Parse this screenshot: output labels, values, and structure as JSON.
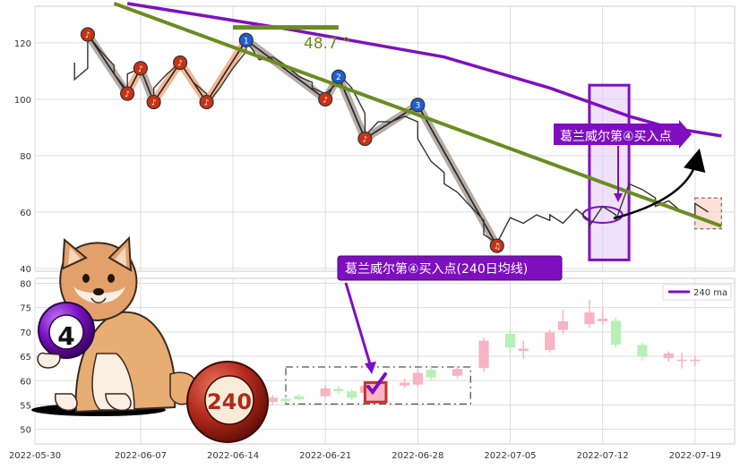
{
  "chart_data": [
    {
      "type": "line",
      "panel": "price",
      "ylim": [
        39,
        133
      ],
      "y_ticks": [
        "120",
        "100",
        "80",
        "60",
        "40"
      ],
      "grid": true,
      "price_series": [
        [
          "2022-06-02",
          113
        ],
        [
          "2022-06-02",
          107
        ],
        [
          "2022-06-03",
          111
        ],
        [
          "2022-06-03",
          123
        ],
        [
          "2022-06-04",
          117
        ],
        [
          "2022-06-05",
          112
        ],
        [
          "2022-06-05",
          109
        ],
        [
          "2022-06-06",
          103
        ],
        [
          "2022-06-06",
          109
        ],
        [
          "2022-06-07",
          111
        ],
        [
          "2022-06-08",
          99
        ],
        [
          "2022-06-08",
          104
        ],
        [
          "2022-06-09",
          109
        ],
        [
          "2022-06-10",
          113
        ],
        [
          "2022-06-11",
          106
        ],
        [
          "2022-06-12",
          102
        ],
        [
          "2022-06-12",
          98
        ],
        [
          "2022-06-13",
          104
        ],
        [
          "2022-06-14",
          111
        ],
        [
          "2022-06-15",
          117
        ],
        [
          "2022-06-15",
          121
        ],
        [
          "2022-06-16",
          114
        ],
        [
          "2022-06-17",
          115
        ],
        [
          "2022-06-18",
          112
        ],
        [
          "2022-06-19",
          108
        ],
        [
          "2022-06-20",
          106
        ],
        [
          "2022-06-20",
          104
        ],
        [
          "2022-06-21",
          102
        ],
        [
          "2022-06-22",
          106
        ],
        [
          "2022-06-22",
          109
        ],
        [
          "2022-06-23",
          104
        ],
        [
          "2022-06-24",
          95
        ],
        [
          "2022-06-24",
          87
        ],
        [
          "2022-06-25",
          92
        ],
        [
          "2022-06-26",
          92
        ],
        [
          "2022-06-27",
          94
        ],
        [
          "2022-06-28",
          92
        ],
        [
          "2022-06-28",
          86
        ],
        [
          "2022-06-29",
          78
        ],
        [
          "2022-06-30",
          74
        ],
        [
          "2022-06-30",
          70
        ],
        [
          "2022-07-01",
          67
        ],
        [
          "2022-07-02",
          62
        ],
        [
          "2022-07-03",
          57
        ],
        [
          "2022-07-03",
          52
        ],
        [
          "2022-07-04",
          49
        ],
        [
          "2022-07-05",
          58
        ],
        [
          "2022-07-06",
          56
        ],
        [
          "2022-07-07",
          59
        ],
        [
          "2022-07-08",
          57
        ],
        [
          "2022-07-08",
          59
        ],
        [
          "2022-07-09",
          56
        ],
        [
          "2022-07-10",
          61
        ],
        [
          "2022-07-11",
          57
        ],
        [
          "2022-07-11",
          55
        ],
        [
          "2022-07-12",
          62
        ],
        [
          "2022-07-13",
          59
        ],
        [
          "2022-07-13",
          57
        ],
        [
          "2022-07-14",
          70
        ],
        [
          "2022-07-15",
          68
        ],
        [
          "2022-07-16",
          65
        ],
        [
          "2022-07-16",
          62
        ],
        [
          "2022-07-17",
          64
        ],
        [
          "2022-07-18",
          60
        ],
        [
          "2022-07-19",
          59
        ],
        [
          "2022-07-19",
          63
        ],
        [
          "2022-07-20",
          60
        ]
      ],
      "ma_240_line": [
        [
          "2022-06-06",
          134
        ],
        [
          "2022-06-18",
          125
        ],
        [
          "2022-06-30",
          115
        ],
        [
          "2022-07-08",
          104
        ],
        [
          "2022-07-14",
          94
        ],
        [
          "2022-07-17",
          90
        ],
        [
          "2022-07-21",
          87
        ]
      ],
      "trend_line": [
        [
          "2022-06-05",
          134
        ],
        [
          "2022-07-21",
          55
        ]
      ],
      "horizontal_line": [
        [
          "2022-06-14",
          125.5
        ],
        [
          "2022-06-22",
          125.5
        ]
      ],
      "angle_label": "48.7 °",
      "wave_points_down": [
        {
          "x": "2022-06-03",
          "y": 123,
          "label": "♪"
        },
        {
          "x": "2022-06-06",
          "y": 102,
          "label": "♪"
        },
        {
          "x": "2022-06-07",
          "y": 111,
          "label": "♪"
        },
        {
          "x": "2022-06-08",
          "y": 99,
          "label": "♪"
        },
        {
          "x": "2022-06-10",
          "y": 113,
          "label": "♪"
        },
        {
          "x": "2022-06-12",
          "y": 99,
          "label": "♪"
        },
        {
          "x": "2022-06-21",
          "y": 100,
          "label": "♪"
        },
        {
          "x": "2022-06-24",
          "y": 86,
          "label": "♪"
        },
        {
          "x": "2022-07-04",
          "y": 48,
          "label": "♫"
        }
      ],
      "wave_points_up": [
        {
          "x": "2022-06-15",
          "y": 121,
          "label": "1"
        },
        {
          "x": "2022-06-22",
          "y": 108,
          "label": "2"
        },
        {
          "x": "2022-06-28",
          "y": 98,
          "label": "3"
        }
      ],
      "annotation_upper": "葛兰威尔第④买入点",
      "highlight_box": {
        "x0": "2022-07-11",
        "x1": "2022-07-14",
        "y0": 43,
        "y1": 105
      },
      "ellipse_center": {
        "x": "2022-07-12",
        "y": 59
      },
      "small_box": {
        "x0": "2022-07-19",
        "x1": "2022-07-21",
        "y0": 54,
        "y1": 65
      }
    },
    {
      "type": "candlestick",
      "panel": "volume_ma",
      "ylim": [
        47,
        81
      ],
      "y_ticks": [
        "80",
        "75",
        "70",
        "65",
        "60",
        "55",
        "50"
      ],
      "x_ticks": [
        "2022-05-30",
        "2022-06-07",
        "2022-06-14",
        "2022-06-21",
        "2022-06-28",
        "2022-07-05",
        "2022-07-12",
        "2022-07-19"
      ],
      "legend": {
        "label": "240 ma",
        "color": "#7e0fbf",
        "position": "top-right"
      },
      "candles": [
        {
          "x": "2022-06-17",
          "o": 56.5,
          "c": 55.6,
          "h": 57,
          "l": 55,
          "up": false
        },
        {
          "x": "2022-06-18",
          "o": 55.8,
          "c": 56.3,
          "h": 56.7,
          "l": 55.4,
          "up": true
        },
        {
          "x": "2022-06-19",
          "o": 56.2,
          "c": 56.8,
          "h": 57.2,
          "l": 55.9,
          "up": true
        },
        {
          "x": "2022-06-21",
          "o": 56.8,
          "c": 58.4,
          "h": 59.0,
          "l": 56.4,
          "up": false
        },
        {
          "x": "2022-06-22",
          "o": 57.8,
          "c": 58.3,
          "h": 58.9,
          "l": 57.4,
          "up": true
        },
        {
          "x": "2022-06-23",
          "o": 57.8,
          "c": 56.5,
          "h": 58.2,
          "l": 56.0,
          "up": true
        },
        {
          "x": "2022-06-24",
          "o": 57.5,
          "c": 58.9,
          "h": 59.4,
          "l": 57.1,
          "up": false
        },
        {
          "x": "2022-06-25",
          "o": 58.6,
          "c": 59.3,
          "h": 60.0,
          "l": 58.3,
          "up": false
        },
        {
          "x": "2022-06-27",
          "o": 59.0,
          "c": 59.6,
          "h": 60.4,
          "l": 58.5,
          "up": false
        },
        {
          "x": "2022-06-28",
          "o": 59.2,
          "c": 61.6,
          "h": 62.3,
          "l": 58.7,
          "up": false
        },
        {
          "x": "2022-06-29",
          "o": 60.7,
          "c": 62.2,
          "h": 62.8,
          "l": 60.0,
          "up": true
        },
        {
          "x": "2022-07-01",
          "o": 61.0,
          "c": 62.4,
          "h": 63.0,
          "l": 60.5,
          "up": false
        },
        {
          "x": "2022-07-03",
          "o": 62.6,
          "c": 68.2,
          "h": 68.8,
          "l": 61.8,
          "up": false
        },
        {
          "x": "2022-07-05",
          "o": 66.8,
          "c": 69.6,
          "h": 70.5,
          "l": 65.6,
          "up": true
        },
        {
          "x": "2022-07-06",
          "o": 66.1,
          "c": 66.6,
          "h": 68.2,
          "l": 64.5,
          "up": false
        },
        {
          "x": "2022-07-08",
          "o": 66.3,
          "c": 69.9,
          "h": 70.5,
          "l": 65.8,
          "up": false
        },
        {
          "x": "2022-07-09",
          "o": 70.4,
          "c": 72.2,
          "h": 74.6,
          "l": 69.5,
          "up": false
        },
        {
          "x": "2022-07-11",
          "o": 71.6,
          "c": 74.0,
          "h": 76.6,
          "l": 70.8,
          "up": false
        },
        {
          "x": "2022-07-12",
          "o": 72.2,
          "c": 72.7,
          "h": 74.8,
          "l": 71.5,
          "up": false
        },
        {
          "x": "2022-07-13",
          "o": 67.4,
          "c": 72.3,
          "h": 72.9,
          "l": 66.8,
          "up": true
        },
        {
          "x": "2022-07-15",
          "o": 64.9,
          "c": 67.3,
          "h": 67.8,
          "l": 64.1,
          "up": true
        },
        {
          "x": "2022-07-17",
          "o": 64.6,
          "c": 65.6,
          "h": 66.0,
          "l": 63.9,
          "up": false
        },
        {
          "x": "2022-07-18",
          "o": 64.3,
          "c": 64.3,
          "h": 65.7,
          "l": 62.5,
          "up": false
        },
        {
          "x": "2022-07-19",
          "o": 64.3,
          "c": 64.3,
          "h": 65.0,
          "l": 63.0,
          "up": false
        }
      ],
      "dashed_box": {
        "x0": "2022-06-18",
        "x1": "2022-07-02",
        "y0": 55.2,
        "y1": 62.8
      },
      "highlight_candle": {
        "x0": "2022-06-24",
        "x1": "2022-06-25",
        "y0": 55.6,
        "y1": 59.6
      },
      "annotation_lower": "葛兰威尔第④买入点(240日均线)",
      "ball_labels": [
        "4",
        "240"
      ]
    }
  ],
  "colors": {
    "ma_240": "#7e0fbf",
    "trend": "#6b8c21",
    "price": "#333333",
    "wave_up_fill": "#f0a070",
    "wave_down_fill": "#a09088",
    "point_red": "#c93214",
    "point_blue": "#1e5fcf",
    "candle_up": "#b7f0b7",
    "candle_down": "#f7b4c3",
    "annotation_bg": "#7e0fbf",
    "highlight_red": "#c8322b"
  }
}
